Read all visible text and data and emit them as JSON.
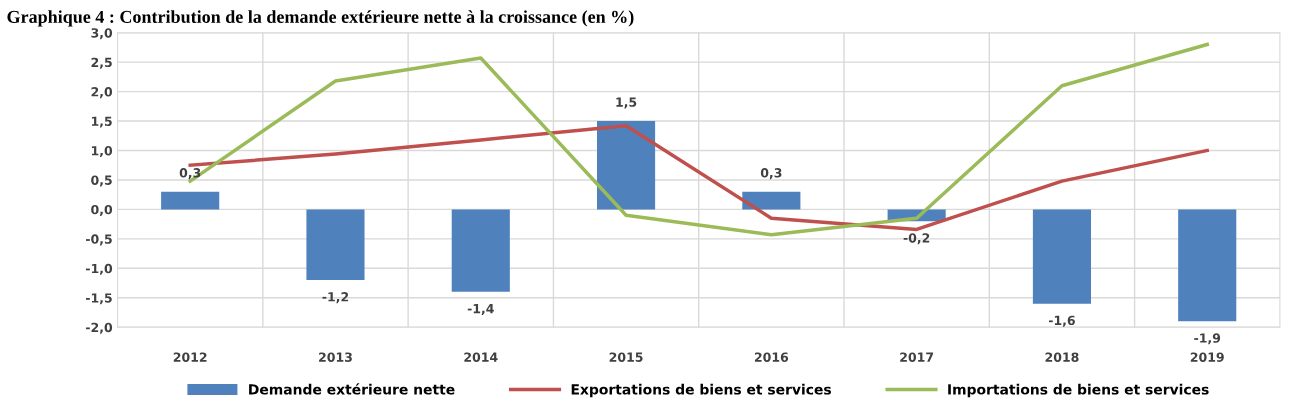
{
  "chart_data": {
    "type": "bar",
    "title": "Graphique 4 : Contribution de la demande extérieure nette à la croissance (en %)",
    "categories": [
      "2012",
      "2013",
      "2014",
      "2015",
      "2016",
      "2017",
      "2018",
      "2019"
    ],
    "series": [
      {
        "name": "Demande extérieure nette",
        "color": "#4f81bd",
        "values": [
          0.3,
          -1.2,
          -1.4,
          1.5,
          0.3,
          -0.2,
          -1.6,
          -1.9
        ],
        "value_labels": [
          "0,3",
          "-1,2",
          "-1,4",
          "1,5",
          "0,3",
          "-0,2",
          "-1,6",
          "-1,9"
        ]
      },
      {
        "name": "Exportations de biens et services",
        "type": "line",
        "color": "#c0504d",
        "values": [
          0.75,
          0.94,
          1.18,
          1.42,
          -0.15,
          -0.34,
          0.48,
          1.0
        ]
      },
      {
        "name": "Importations de biens et services",
        "type": "line",
        "color": "#9bbb59",
        "values": [
          0.48,
          2.18,
          2.57,
          -0.1,
          -0.43,
          -0.15,
          2.1,
          2.8
        ]
      }
    ],
    "ylim": [
      -2.0,
      3.0
    ],
    "yticks": [
      {
        "value": -2.0,
        "label": "-2,0"
      },
      {
        "value": -1.5,
        "label": "-1,5"
      },
      {
        "value": -1.0,
        "label": "-1,0"
      },
      {
        "value": -0.5,
        "label": "-0,5"
      },
      {
        "value": 0.0,
        "label": "0,0"
      },
      {
        "value": 0.5,
        "label": "0,5"
      },
      {
        "value": 1.0,
        "label": "1,0"
      },
      {
        "value": 1.5,
        "label": "1,5"
      },
      {
        "value": 2.0,
        "label": "2,0"
      },
      {
        "value": 2.5,
        "label": "2,5"
      },
      {
        "value": 3.0,
        "label": "3,0"
      }
    ],
    "grid": true,
    "legend": "bottom",
    "marker": "none",
    "line_style": "solid"
  }
}
